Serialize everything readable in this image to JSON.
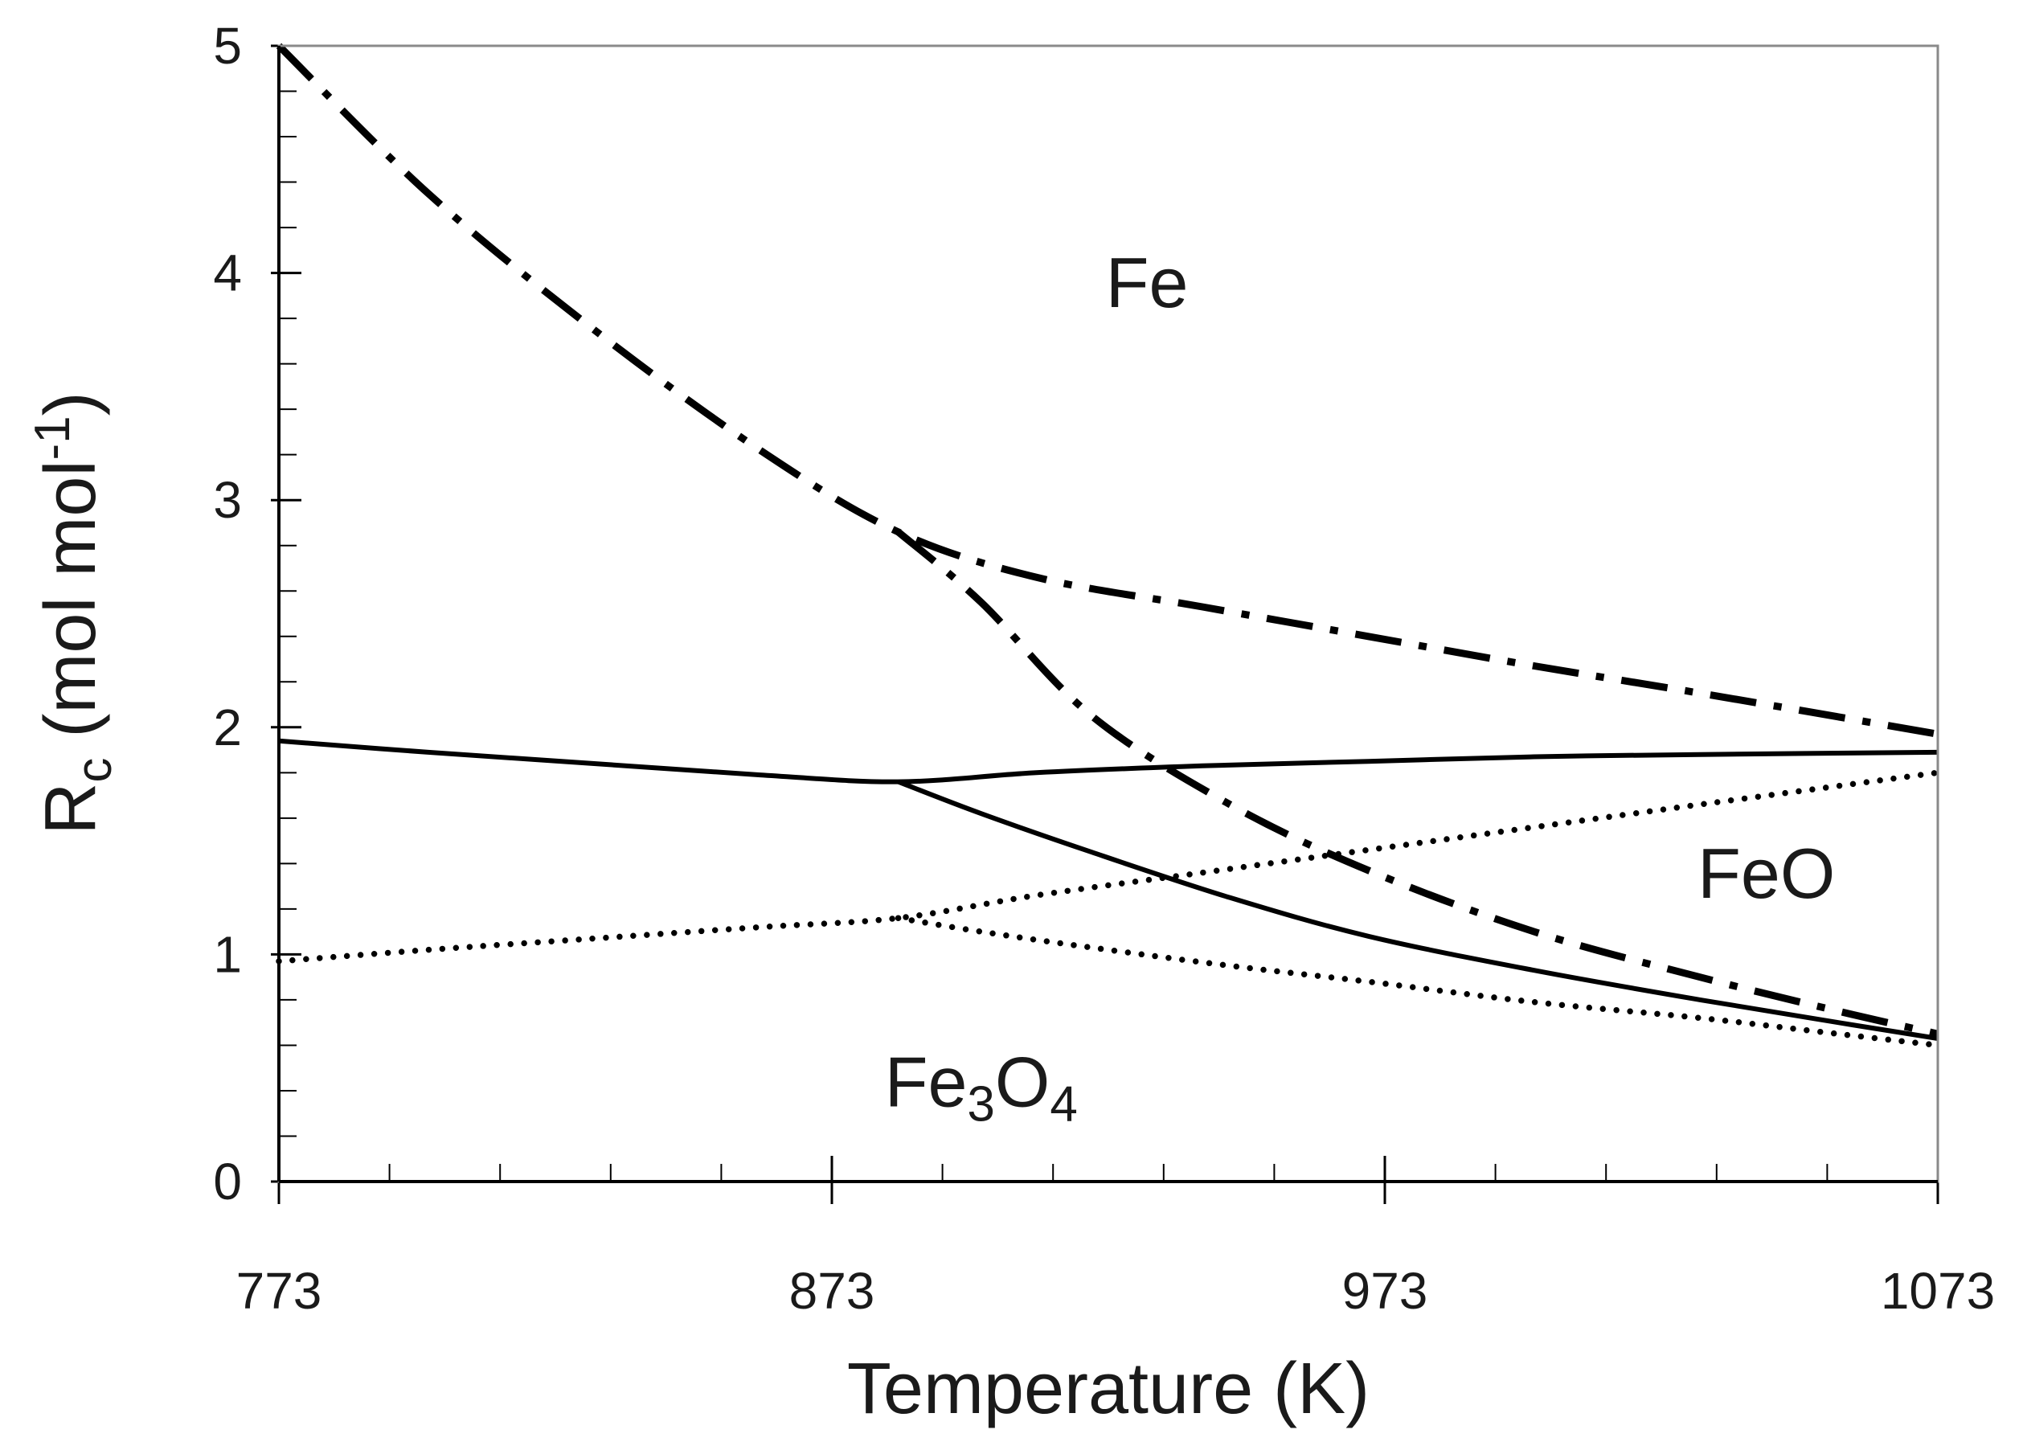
{
  "chart_data": {
    "type": "line",
    "xlabel": "Temperature (K)",
    "ylabel": {
      "main": "R",
      "sub": "c",
      "unit_pre": " (mol mol",
      "unit_sup": "-1",
      "unit_post": ")"
    },
    "xlim": [
      773,
      1073
    ],
    "ylim": [
      0,
      5
    ],
    "x_ticks": [
      773,
      873,
      973,
      1073
    ],
    "x_tick_labels": [
      "773",
      "873",
      "973",
      "1073"
    ],
    "x_minor_step": 20,
    "y_ticks": [
      0,
      1,
      2,
      3,
      4,
      5
    ],
    "y_tick_labels": [
      "0",
      "1",
      "2",
      "3",
      "4",
      "5"
    ],
    "y_minor_step": 0.2,
    "grid": false,
    "legend": "none",
    "region_labels": [
      {
        "key": "fe",
        "text": "Fe",
        "x": 930,
        "y": 3.85
      },
      {
        "key": "feo",
        "text": "FeO",
        "x": 1042,
        "y": 1.25
      },
      {
        "key": "fe3o4",
        "text": "Fe",
        "sub1": "3",
        "text2": "O",
        "sub2": "4",
        "x": 900,
        "y": 0.33
      }
    ],
    "series": [
      {
        "name": "dash-dot upper boundary",
        "style": "dashdot",
        "x": [
          773,
          800,
          830,
          860,
          885,
          910,
          940,
          970,
          1000,
          1030,
          1073
        ],
        "y": [
          5.0,
          4.35,
          3.75,
          3.22,
          2.86,
          2.66,
          2.53,
          2.4,
          2.27,
          2.15,
          1.97
        ]
      },
      {
        "name": "dash-dot lower boundary",
        "style": "dashdot",
        "x": [
          885,
          900,
          920,
          945,
          970,
          1000,
          1030,
          1055,
          1073
        ],
        "y": [
          2.86,
          2.55,
          2.05,
          1.66,
          1.37,
          1.1,
          0.9,
          0.75,
          0.65
        ]
      },
      {
        "name": "solid upper boundary",
        "style": "solid",
        "x": [
          773,
          800,
          830,
          860,
          885,
          910,
          940,
          970,
          1000,
          1030,
          1073
        ],
        "y": [
          1.94,
          1.89,
          1.84,
          1.79,
          1.76,
          1.8,
          1.83,
          1.85,
          1.87,
          1.88,
          1.89
        ]
      },
      {
        "name": "solid lower boundary",
        "style": "solid",
        "x": [
          885,
          900,
          920,
          945,
          970,
          1000,
          1030,
          1055,
          1073
        ],
        "y": [
          1.76,
          1.62,
          1.45,
          1.25,
          1.08,
          0.93,
          0.8,
          0.7,
          0.63
        ]
      },
      {
        "name": "dotted upper boundary",
        "style": "dotted",
        "x": [
          773,
          800,
          830,
          860,
          885,
          910,
          940,
          970,
          1000,
          1030,
          1073
        ],
        "y": [
          0.97,
          1.02,
          1.07,
          1.12,
          1.16,
          1.26,
          1.36,
          1.46,
          1.56,
          1.66,
          1.8
        ]
      },
      {
        "name": "dotted lower boundary",
        "style": "dotted",
        "x": [
          885,
          900,
          920,
          945,
          970,
          1000,
          1030,
          1055,
          1073
        ],
        "y": [
          1.16,
          1.1,
          1.03,
          0.95,
          0.88,
          0.79,
          0.72,
          0.65,
          0.6
        ]
      }
    ]
  }
}
